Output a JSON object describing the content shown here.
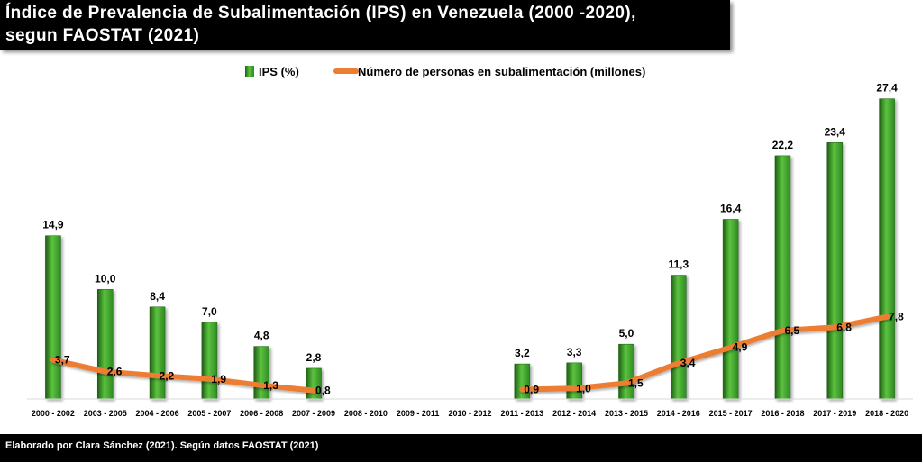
{
  "title": {
    "line1": "Índice de Prevalencia de Subalimentación (IPS) en Venezuela (2000 -2020),",
    "line2": "segun FAOSTAT (2021)"
  },
  "footer": {
    "credit": "Elaborado por Clara Sánchez (2021).  Según datos FAOSTAT (2021)"
  },
  "colors": {
    "bar": "#2e8b22",
    "bar_light": "#5cc23f",
    "bar_dark": "#1c5e13",
    "line": "#ed7d31"
  },
  "chart_data": {
    "type": "bar",
    "categories": [
      "2000 - 2002",
      "2003 - 2005",
      "2004 - 2006",
      "2005 - 2007",
      "2006 - 2008",
      "2007 - 2009",
      "2008 - 2010",
      "2009 - 2011",
      "2010 - 2012",
      "2011 - 2013",
      "2012 - 2014",
      "2013 - 2015",
      "2014 - 2016",
      "2015 - 2017",
      "2016 - 2018",
      "2017 - 2019",
      "2018 - 2020"
    ],
    "series": [
      {
        "name": "IPS (%)",
        "kind": "bar",
        "values": [
          14.9,
          10.0,
          8.4,
          7.0,
          4.8,
          2.8,
          null,
          null,
          null,
          3.2,
          3.3,
          5.0,
          11.3,
          16.4,
          22.2,
          23.4,
          27.4
        ],
        "labels": [
          "14,9",
          "10,0",
          "8,4",
          "7,0",
          "4,8",
          "2,8",
          "",
          "",
          "",
          "3,2",
          "3,3",
          "5,0",
          "11,3",
          "16,4",
          "22,2",
          "23,4",
          "27,4"
        ]
      },
      {
        "name": "Número de personas en subalimentación (millones)",
        "kind": "line",
        "values": [
          3.7,
          2.6,
          2.2,
          1.9,
          1.3,
          0.8,
          null,
          null,
          null,
          0.9,
          1.0,
          1.5,
          3.4,
          4.9,
          6.5,
          6.8,
          7.8
        ],
        "labels": [
          "3,7",
          "2,6",
          "2,2",
          "1,9",
          "1,3",
          "0,8",
          "",
          "",
          "",
          "0,9",
          "1,0",
          "1,5",
          "3,4",
          "4,9",
          "6,5",
          "6,8",
          "7,8"
        ]
      }
    ],
    "ylim": [
      0,
      30
    ],
    "legend_position": "top-center",
    "grid": false
  }
}
